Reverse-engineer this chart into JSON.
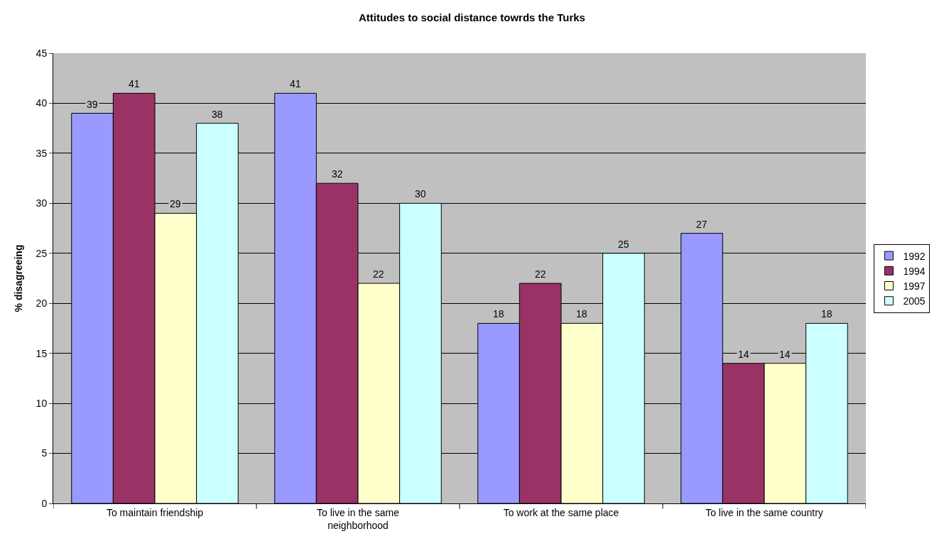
{
  "chart_data": {
    "type": "bar",
    "title": "Attitudes to social distance towrds the Turks",
    "ylabel": "% disagreeing",
    "categories": [
      "To maintain friendship",
      "To live in the same neighborhood",
      "To work at the same place",
      "To live in the same country"
    ],
    "series": [
      {
        "name": "1992",
        "color": "#9999ff",
        "values": [
          39,
          41,
          18,
          27
        ]
      },
      {
        "name": "1994",
        "color": "#993366",
        "values": [
          41,
          32,
          22,
          14
        ]
      },
      {
        "name": "1997",
        "color": "#ffffcc",
        "values": [
          29,
          22,
          18,
          14
        ]
      },
      {
        "name": "2005",
        "color": "#ccffff",
        "values": [
          38,
          30,
          25,
          18
        ]
      }
    ],
    "ylim": [
      0,
      45
    ],
    "yticks": [
      0,
      5,
      10,
      15,
      20,
      25,
      30,
      35,
      40,
      45
    ],
    "grid": "y",
    "legend": "right",
    "data_labels": true
  }
}
